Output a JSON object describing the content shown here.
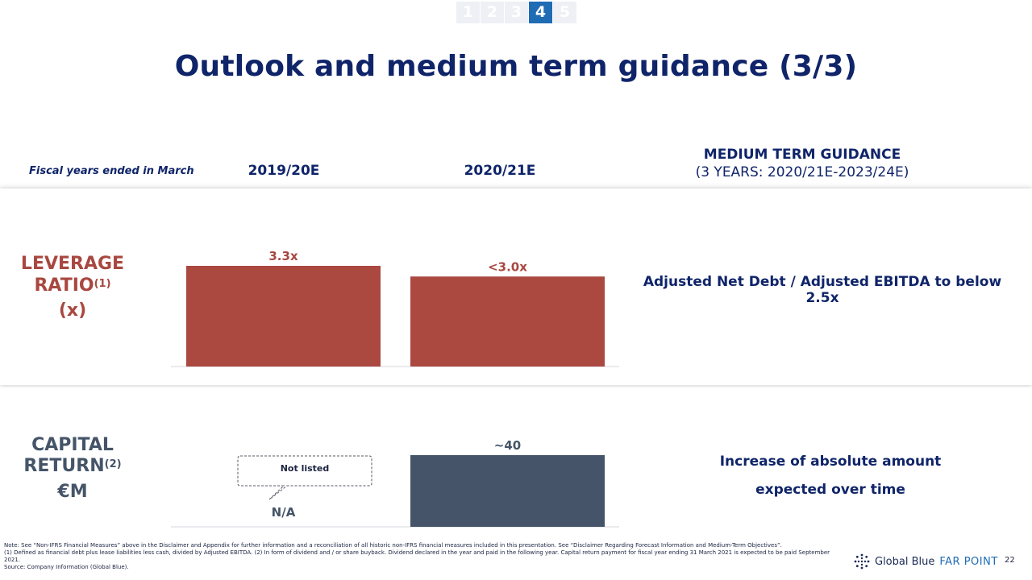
{
  "nav": {
    "items": [
      "1",
      "2",
      "3",
      "4",
      "5"
    ],
    "active_index": 3
  },
  "title": "Outlook and medium term guidance (3/3)",
  "header": {
    "fiscal_note": "Fiscal years ended in March",
    "col1": "2019/20E",
    "col2": "2020/21E",
    "guidance_title": "MEDIUM TERM GUIDANCE",
    "guidance_subtitle": "(3 YEARS: 2020/21E-2023/24E)"
  },
  "leverage": {
    "label_line1": "LEVERAGE",
    "label_line2": "RATIO",
    "label_sup": "(1)",
    "label_unit": "(x)",
    "guidance": "Adjusted Net Debt / Adjusted EBITDA to below 2.5x"
  },
  "capital": {
    "label_line1": "CAPITAL",
    "label_line2": "RETURN",
    "label_sup": "(2)",
    "label_unit": "€M",
    "guidance_line1": "Increase of absolute amount",
    "guidance_line2": "expected over time",
    "callout": "Not listed"
  },
  "chart_data": [
    {
      "type": "bar",
      "categories": [
        "2019/20E",
        "2020/21E"
      ],
      "values": [
        3.3,
        2.95
      ],
      "data_labels": [
        "3.3x",
        "<3.0x"
      ],
      "ylim": [
        0,
        3.3
      ],
      "color": "#ab4840"
    },
    {
      "type": "bar",
      "categories": [
        "2019/20E",
        "2020/21E"
      ],
      "values": [
        null,
        40
      ],
      "data_labels": [
        "N/A",
        "~40"
      ],
      "ylim": [
        0,
        40
      ],
      "color": "#455468"
    }
  ],
  "footnote": {
    "note": "Note: See “Non-IFRS Financial Measures” above in the Disclaimer and Appendix for further information and a reconciliation of all historic non-IFRS financial measures included in this presentation. See “Disclaimer Regarding Forecast Information and Medium-Term Objectives”.",
    "def": "(1) Defined as financial debt plus lease liabilities less cash, divided by Adjusted EBITDA. (2) In form of dividend and / or share buyback. Dividend declared in the year and paid in the following year. Capital return payment for fiscal year ending 31 March 2021 is expected to be paid September 2021.",
    "source": "Source: Company Information (Global Blue)."
  },
  "logo": {
    "brand": "Global Blue",
    "product": "FAR POINT"
  },
  "page_number": "22",
  "colors": {
    "navy": "#0f2469",
    "red": "#ab4840",
    "slate": "#455468",
    "accent": "#1f6cb5"
  }
}
